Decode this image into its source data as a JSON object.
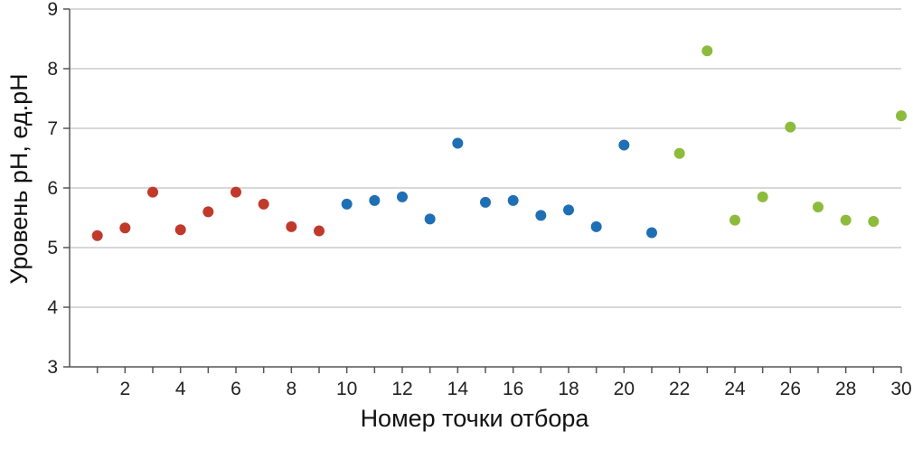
{
  "chart_data": {
    "type": "scatter",
    "title": "",
    "xlabel": "Номер точки отбора",
    "ylabel": "Уровень pH, ед.pH",
    "xlim": [
      0,
      30
    ],
    "ylim": [
      3,
      9
    ],
    "x_ticks": [
      2,
      4,
      6,
      8,
      10,
      12,
      14,
      16,
      18,
      20,
      22,
      24,
      26,
      28,
      30
    ],
    "y_ticks": [
      3,
      4,
      5,
      6,
      7,
      8,
      9
    ],
    "grid": "horizontal",
    "legend": "none",
    "series": [
      {
        "color": "#c0392b",
        "x": [
          1,
          2,
          3,
          4,
          5,
          6,
          7,
          8,
          9
        ],
        "y": [
          5.2,
          5.33,
          5.93,
          5.3,
          5.6,
          5.93,
          5.73,
          5.35,
          5.28
        ]
      },
      {
        "color": "#1f6fb5",
        "x": [
          10,
          11,
          12,
          13,
          14,
          15,
          16,
          17,
          18,
          19,
          20,
          21
        ],
        "y": [
          5.73,
          5.79,
          5.85,
          5.48,
          6.75,
          5.76,
          5.79,
          5.54,
          5.63,
          5.35,
          6.72,
          5.25
        ]
      },
      {
        "color": "#8dbb3c",
        "x": [
          22,
          23,
          24,
          25,
          26,
          27,
          28,
          29,
          30
        ],
        "y": [
          6.58,
          8.3,
          5.46,
          5.85,
          7.02,
          5.68,
          5.46,
          5.44,
          7.21
        ]
      }
    ]
  },
  "colors": {
    "grid": "#cccccc",
    "axis": "#555555"
  }
}
